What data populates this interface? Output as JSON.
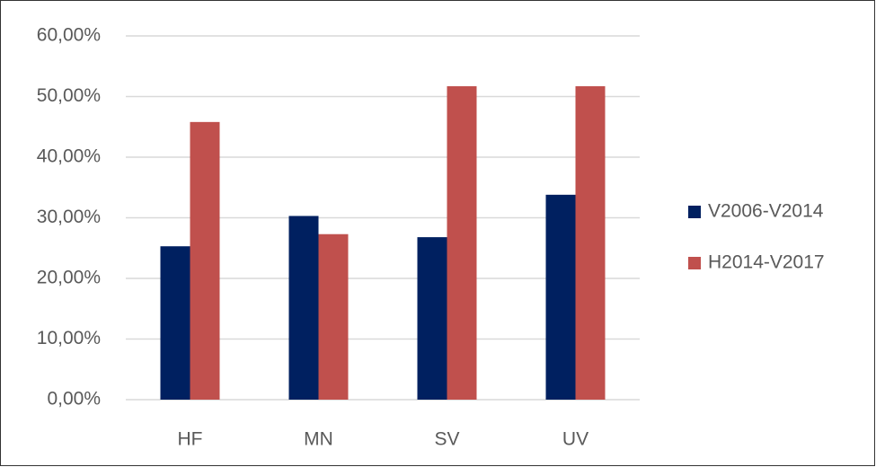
{
  "chart_data": {
    "type": "bar",
    "categories": [
      "HF",
      "MN",
      "SV",
      "UV"
    ],
    "series": [
      {
        "name": "V2006-V2014",
        "color": "#002060",
        "values": [
          25.3,
          30.3,
          26.8,
          33.8
        ]
      },
      {
        "name": "H2014-V2017",
        "color": "#c0504d",
        "values": [
          45.8,
          27.3,
          51.7,
          51.7
        ]
      }
    ],
    "ylim": [
      0,
      60
    ],
    "yticks": [
      {
        "value": 0,
        "label": "0,00%"
      },
      {
        "value": 10,
        "label": "10,00%"
      },
      {
        "value": 20,
        "label": "20,00%"
      },
      {
        "value": 30,
        "label": "30,00%"
      },
      {
        "value": 40,
        "label": "40,00%"
      },
      {
        "value": 50,
        "label": "50,00%"
      },
      {
        "value": 60,
        "label": "60,00%"
      }
    ],
    "grid": true,
    "legend": "right"
  }
}
